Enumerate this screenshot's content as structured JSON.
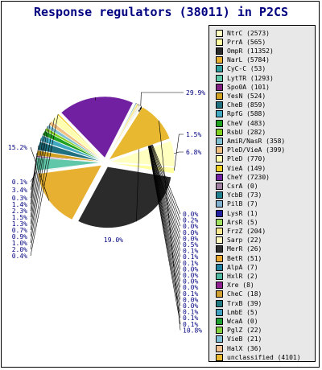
{
  "chart_data": {
    "type": "pie",
    "title": "Response regulators (38011) in P2CS",
    "slices": [
      {
        "name": "NtrC (2573)",
        "value": 2573,
        "pct_label": "6.8%",
        "color": "#ffffc0"
      },
      {
        "name": "PrrA (565)",
        "value": 565,
        "pct_label": "1.5%",
        "color": "#ffffa0"
      },
      {
        "name": "OmpR (11352)",
        "value": 11352,
        "pct_label": "29.9%",
        "color": "#2b2b2b"
      },
      {
        "name": "NarL (5784)",
        "value": 5784,
        "pct_label": "15.2%",
        "color": "#e8b030"
      },
      {
        "name": "CyC-C (53)",
        "value": 53,
        "pct_label": "0.1%",
        "color": "#30a0a0"
      },
      {
        "name": "LytTR (1293)",
        "value": 1293,
        "pct_label": "3.4%",
        "color": "#60c8a8"
      },
      {
        "name": "Spo0A (101)",
        "value": 101,
        "pct_label": "0.3%",
        "color": "#802080"
      },
      {
        "name": "YesN (524)",
        "value": 524,
        "pct_label": "1.4%",
        "color": "#d0a020"
      },
      {
        "name": "CheB (859)",
        "value": 859,
        "pct_label": "2.3%",
        "color": "#207080"
      },
      {
        "name": "RpfG (588)",
        "value": 588,
        "pct_label": "1.5%",
        "color": "#40a8c0"
      },
      {
        "name": "CheV (483)",
        "value": 483,
        "pct_label": "1.3%",
        "color": "#20a020"
      },
      {
        "name": "RsbU (282)",
        "value": 282,
        "pct_label": "0.7%",
        "color": "#80d020"
      },
      {
        "name": "AmiR/NasR (358)",
        "value": 358,
        "pct_label": "0.9%",
        "color": "#80c0d0"
      },
      {
        "name": "PleD/VieA (399)",
        "value": 399,
        "pct_label": "1.0%",
        "color": "#f0c080"
      },
      {
        "name": "PleD (770)",
        "value": 770,
        "pct_label": "2.0%",
        "color": "#ffffb0"
      },
      {
        "name": "VieA (149)",
        "value": 149,
        "pct_label": "0.4%",
        "color": "#f0d020"
      },
      {
        "name": "CheY (7230)",
        "value": 7230,
        "pct_label": "19.0%",
        "color": "#7020a0"
      },
      {
        "name": "CsrA (0)",
        "value": 0,
        "pct_label": "0.0%",
        "color": "#a080a0"
      },
      {
        "name": "YcbB (73)",
        "value": 73,
        "pct_label": "0.2%",
        "color": "#208090"
      },
      {
        "name": "PilB (7)",
        "value": 7,
        "pct_label": "0.0%",
        "color": "#80b0d0"
      },
      {
        "name": "LysR (1)",
        "value": 1,
        "pct_label": "0.0%",
        "color": "#2020a0"
      },
      {
        "name": "ArsR (5)",
        "value": 5,
        "pct_label": "0.0%",
        "color": "#a0e060"
      },
      {
        "name": "FrzZ (204)",
        "value": 204,
        "pct_label": "0.5%",
        "color": "#f8e890"
      },
      {
        "name": "Sarp (22)",
        "value": 22,
        "pct_label": "0.1%",
        "color": "#fff8c0"
      },
      {
        "name": "MerR (26)",
        "value": 26,
        "pct_label": "0.1%",
        "color": "#303030"
      },
      {
        "name": "BetR (51)",
        "value": 51,
        "pct_label": "0.1%",
        "color": "#e8a830"
      },
      {
        "name": "AlpA (7)",
        "value": 7,
        "pct_label": "0.0%",
        "color": "#2080a0"
      },
      {
        "name": "HxlR (2)",
        "value": 2,
        "pct_label": "0.0%",
        "color": "#50b8a0"
      },
      {
        "name": "Xre (8)",
        "value": 8,
        "pct_label": "0.0%",
        "color": "#902090"
      },
      {
        "name": "CheC (18)",
        "value": 18,
        "pct_label": "0.0%",
        "color": "#d0a030"
      },
      {
        "name": "TrxB (39)",
        "value": 39,
        "pct_label": "0.1%",
        "color": "#207880"
      },
      {
        "name": "LmbE (5)",
        "value": 5,
        "pct_label": "0.0%",
        "color": "#40a0c0"
      },
      {
        "name": "WcaA (0)",
        "value": 0,
        "pct_label": "0.0%",
        "color": "#20a030"
      },
      {
        "name": "PglZ (22)",
        "value": 22,
        "pct_label": "0.1%",
        "color": "#80d040"
      },
      {
        "name": "VieB (21)",
        "value": 21,
        "pct_label": "0.1%",
        "color": "#80c0d8"
      },
      {
        "name": "HalX (36)",
        "value": 36,
        "pct_label": "0.1%",
        "color": "#f0c090"
      },
      {
        "name": "unclassified (4101)",
        "value": 4101,
        "pct_label": "10.8%",
        "color": "#e8b830"
      }
    ],
    "legend_position": "right"
  }
}
